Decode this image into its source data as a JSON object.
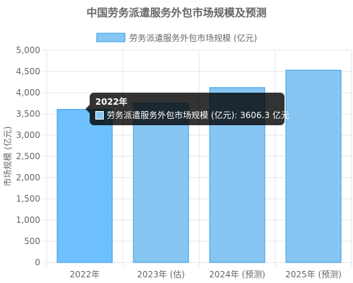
{
  "chart_data": {
    "type": "bar",
    "title": "中国劳务派遣服务外包市场规模及预测",
    "ylabel": "市场规模 (亿元)",
    "xlabel": "",
    "categories": [
      "2022年",
      "2023年 (估)",
      "2024年 (预测)",
      "2025年 (预测)"
    ],
    "series": [
      {
        "name": "劳务派遣服务外包市场规模 (亿元)",
        "values": [
          3606.3,
          3750,
          4120,
          4530
        ]
      }
    ],
    "ylim": [
      0,
      5000
    ],
    "yticks": [
      "0",
      "500",
      "1,000",
      "1,500",
      "2,000",
      "2,500",
      "3,000",
      "3,500",
      "4,000",
      "4,500",
      "5,000"
    ],
    "ytick_values": [
      0,
      500,
      1000,
      1500,
      2000,
      2500,
      3000,
      3500,
      4000,
      4500,
      5000
    ],
    "grid": true,
    "legend_position": "top",
    "colors": {
      "bar": "#87c6f2",
      "bar_active": "#6ec0ff",
      "bar_border": "#3b9be3",
      "grid": "#e5e5e5",
      "text": "#666666"
    }
  },
  "tooltip": {
    "title": "2022年",
    "label": "劳务派遣服务外包市场规模 (亿元): 3606.3 亿元"
  }
}
